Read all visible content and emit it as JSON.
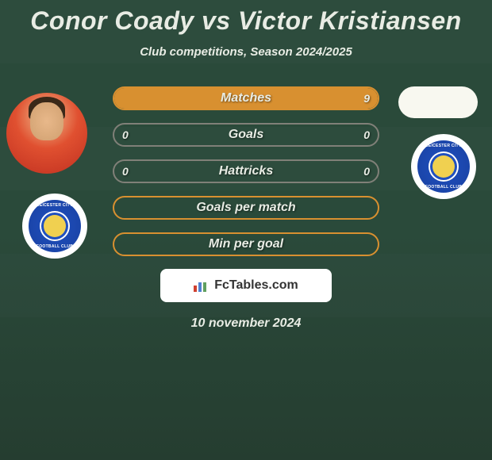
{
  "title": "Conor Coady vs Victor Kristiansen",
  "subtitle": "Club competitions, Season 2024/2025",
  "date": "10 november 2024",
  "watermark": "FcTables.com",
  "club_badge": {
    "text_top": "LEICESTER CITY",
    "text_bottom": "FOOTBALL CLUB"
  },
  "bars": [
    {
      "label": "Matches",
      "left_value": "",
      "right_value": "9",
      "border_color": "#d89030",
      "right_fill_color": "#d89030",
      "right_fill_pct": 100,
      "left_text_color": "#e8ece4"
    },
    {
      "label": "Goals",
      "left_value": "0",
      "right_value": "0",
      "border_color": "#808078",
      "right_fill_color": "transparent",
      "right_fill_pct": 0,
      "left_text_color": "#e8ece4"
    },
    {
      "label": "Hattricks",
      "left_value": "0",
      "right_value": "0",
      "border_color": "#808078",
      "right_fill_color": "transparent",
      "right_fill_pct": 0,
      "left_text_color": "#e8ece4"
    },
    {
      "label": "Goals per match",
      "left_value": "",
      "right_value": "",
      "border_color": "#d89030",
      "right_fill_color": "transparent",
      "right_fill_pct": 0,
      "left_text_color": "#e8ece4"
    },
    {
      "label": "Min per goal",
      "left_value": "",
      "right_value": "",
      "border_color": "#d89030",
      "right_fill_color": "transparent",
      "right_fill_pct": 0,
      "left_text_color": "#e8ece4"
    }
  ]
}
